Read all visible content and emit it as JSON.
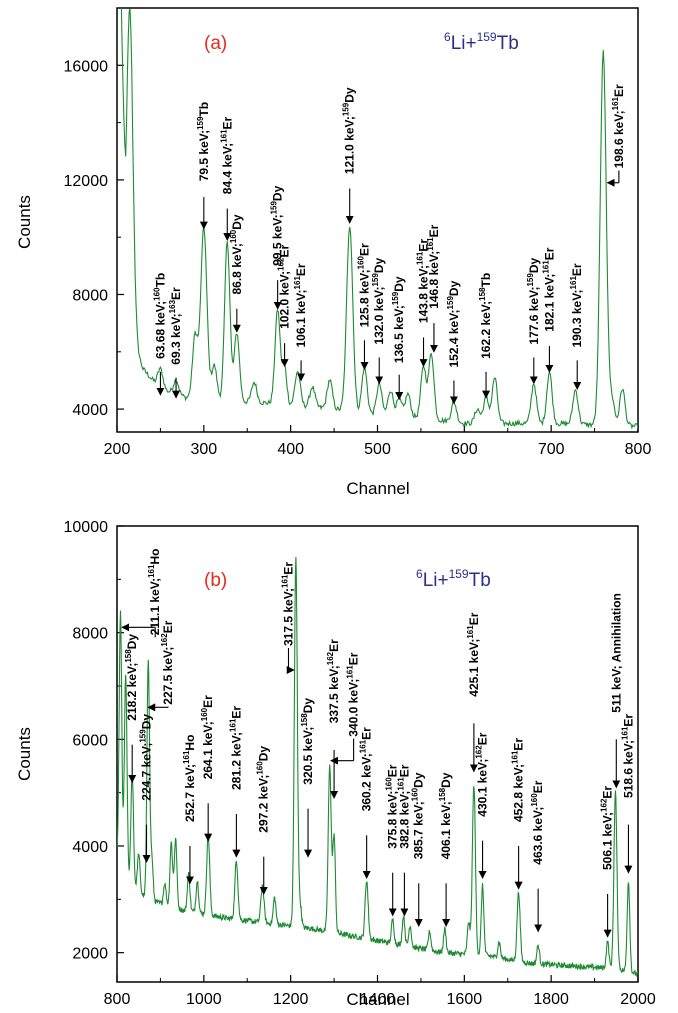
{
  "chart_data": [
    {
      "type": "line",
      "panel_label": "(a)",
      "reaction": {
        "a_mass": "6",
        "a_el": "Li+",
        "b_mass": "159",
        "b_el": "Tb"
      },
      "xlabel": "Channel",
      "ylabel": "Counts",
      "xlim": [
        200,
        800
      ],
      "ylim": [
        3200,
        18000
      ],
      "xticks": [
        200,
        300,
        400,
        500,
        600,
        700,
        800
      ],
      "yticks": [
        4000,
        8000,
        12000,
        16000
      ],
      "grid": false,
      "colors": {
        "line": "#1f8a34",
        "panel_label": "#e8291c",
        "reaction": "#2c2f8a"
      },
      "baseline": [
        [
          205,
          18000
        ],
        [
          210,
          9000
        ],
        [
          218,
          6500
        ],
        [
          230,
          5400
        ],
        [
          250,
          4700
        ],
        [
          280,
          4400
        ],
        [
          320,
          4300
        ],
        [
          380,
          4200
        ],
        [
          450,
          4000
        ],
        [
          500,
          3800
        ],
        [
          550,
          3700
        ],
        [
          600,
          3500
        ],
        [
          650,
          3500
        ],
        [
          700,
          3500
        ],
        [
          750,
          3450
        ],
        [
          800,
          3400
        ]
      ],
      "peaks": [
        {
          "ch": 215,
          "h": 10500,
          "w": 3.5
        },
        {
          "ch": 250,
          "h": 700,
          "w": 3
        },
        {
          "ch": 268,
          "h": 500,
          "w": 3
        },
        {
          "ch": 290,
          "h": 2200,
          "w": 3
        },
        {
          "ch": 300,
          "h": 6000,
          "w": 3.5
        },
        {
          "ch": 312,
          "h": 1200,
          "w": 3
        },
        {
          "ch": 327,
          "h": 5600,
          "w": 3
        },
        {
          "ch": 338,
          "h": 2400,
          "w": 3
        },
        {
          "ch": 358,
          "h": 700,
          "w": 3
        },
        {
          "ch": 385,
          "h": 3300,
          "w": 3
        },
        {
          "ch": 393,
          "h": 1300,
          "w": 2.5
        },
        {
          "ch": 408,
          "h": 1200,
          "w": 3
        },
        {
          "ch": 425,
          "h": 700,
          "w": 3
        },
        {
          "ch": 445,
          "h": 1000,
          "w": 3
        },
        {
          "ch": 468,
          "h": 6500,
          "w": 3.5
        },
        {
          "ch": 485,
          "h": 1600,
          "w": 3
        },
        {
          "ch": 502,
          "h": 1100,
          "w": 3
        },
        {
          "ch": 515,
          "h": 900,
          "w": 3
        },
        {
          "ch": 525,
          "h": 600,
          "w": 3
        },
        {
          "ch": 535,
          "h": 800,
          "w": 3
        },
        {
          "ch": 553,
          "h": 1800,
          "w": 3
        },
        {
          "ch": 562,
          "h": 2300,
          "w": 3
        },
        {
          "ch": 588,
          "h": 700,
          "w": 3
        },
        {
          "ch": 615,
          "h": 500,
          "w": 3
        },
        {
          "ch": 625,
          "h": 900,
          "w": 3
        },
        {
          "ch": 635,
          "h": 1600,
          "w": 3
        },
        {
          "ch": 680,
          "h": 1400,
          "w": 3
        },
        {
          "ch": 698,
          "h": 1800,
          "w": 3
        },
        {
          "ch": 728,
          "h": 1200,
          "w": 3
        },
        {
          "ch": 760,
          "h": 13000,
          "w": 3.5
        },
        {
          "ch": 770,
          "h": 900,
          "w": 3
        },
        {
          "ch": 782,
          "h": 1300,
          "w": 3
        }
      ],
      "annotations": [
        {
          "energy": "63.68 keV;",
          "mass": "160",
          "el": "Tb",
          "ch": 250,
          "tip": 4500,
          "arrow_top": 5300,
          "text_bottom": 5750
        },
        {
          "energy": "69.3 keV;",
          "mass": "163",
          "el": "Er",
          "ch": 268,
          "tip": 4400,
          "arrow_top": 5100,
          "text_bottom": 5550
        },
        {
          "energy": "79.5 keV;",
          "mass": "159",
          "el": "Tb",
          "ch": 300,
          "tip": 10300,
          "arrow_top": 11400,
          "text_bottom": 11950
        },
        {
          "energy": "84.4 keV;",
          "mass": "161",
          "el": "Er",
          "ch": 327,
          "tip": 9900,
          "arrow_top": 11000,
          "text_bottom": 11500
        },
        {
          "energy": "86.8 keV;",
          "mass": "160",
          "el": "Dy",
          "ch": 338,
          "tip": 6700,
          "arrow_top": 7500,
          "text_bottom": 8000
        },
        {
          "energy": "99.5 keV;",
          "mass": "159",
          "el": "Dy",
          "ch": 385,
          "tip": 7500,
          "arrow_top": 8500,
          "text_bottom": 9000
        },
        {
          "energy": "102.0 keV;",
          "mass": "162",
          "el": "Er",
          "ch": 393,
          "tip": 5500,
          "arrow_top": 6300,
          "text_bottom": 6800
        },
        {
          "energy": "106.1 keV;",
          "mass": "161",
          "el": "Er",
          "ch": 412,
          "tip": 5000,
          "arrow_top": 5700,
          "text_bottom": 6150
        },
        {
          "energy": "121.0 keV;",
          "mass": "159",
          "el": "Dy",
          "ch": 468,
          "tip": 10500,
          "arrow_top": 11700,
          "text_bottom": 12200
        },
        {
          "energy": "125.8 keV;",
          "mass": "160",
          "el": "Er",
          "ch": 485,
          "tip": 5400,
          "arrow_top": 6400,
          "text_bottom": 6850
        },
        {
          "energy": "132.0 keV;",
          "mass": "159",
          "el": "Dy",
          "ch": 502,
          "tip": 4900,
          "arrow_top": 5800,
          "text_bottom": 6250
        },
        {
          "energy": "136.5 keV;",
          "mass": "159",
          "el": "Dy",
          "ch": 525,
          "tip": 4350,
          "arrow_top": 5200,
          "text_bottom": 5600
        },
        {
          "energy": "143.8 keV;",
          "mass": "161",
          "el": "Er",
          "ch": 553,
          "tip": 5500,
          "arrow_top": 6500,
          "text_bottom": 7000
        },
        {
          "energy": "146.8 keV;",
          "mass": "161",
          "el": "Er",
          "ch": 565,
          "tip": 6000,
          "arrow_top": 7000,
          "text_bottom": 7500
        },
        {
          "energy": "152.4 keV;",
          "mass": "159",
          "el": "Dy",
          "ch": 588,
          "tip": 4200,
          "arrow_top": 5000,
          "text_bottom": 5450
        },
        {
          "energy": "162.2 keV;",
          "mass": "158",
          "el": "Tb",
          "ch": 625,
          "tip": 4400,
          "arrow_top": 5300,
          "text_bottom": 5750
        },
        {
          "energy": "177.6 keV;",
          "mass": "159",
          "el": "Dy",
          "ch": 680,
          "tip": 4900,
          "arrow_top": 5800,
          "text_bottom": 6250
        },
        {
          "energy": "182.1 keV;",
          "mass": "161",
          "el": "Er",
          "ch": 698,
          "tip": 5300,
          "arrow_top": 6200,
          "text_bottom": 6700
        },
        {
          "energy": "190.3 keV;",
          "mass": "161",
          "el": "Er",
          "ch": 730,
          "tip": 4700,
          "arrow_top": 5700,
          "text_bottom": 6150
        },
        {
          "energy": "198.6 keV;",
          "mass": "161",
          "el": "Er",
          "ch": 778,
          "elbow": "left",
          "tip_ch": 765,
          "tip": 11900,
          "text_bottom": 12400
        }
      ]
    },
    {
      "type": "line",
      "panel_label": "(b)",
      "reaction": {
        "a_mass": "6",
        "a_el": "Li+",
        "b_mass": "159",
        "b_el": "Tb"
      },
      "xlabel": "Channel",
      "ylabel": "Counts",
      "xlim": [
        800,
        2000
      ],
      "ylim": [
        1450,
        10000
      ],
      "xticks": [
        800,
        1000,
        1200,
        1400,
        1600,
        1800,
        2000
      ],
      "yticks": [
        2000,
        4000,
        6000,
        8000,
        10000
      ],
      "grid": false,
      "colors": {
        "line": "#1f8a34",
        "panel_label": "#e8291c",
        "reaction": "#2c2f8a"
      },
      "baseline": [
        [
          800,
          3800
        ],
        [
          830,
          3300
        ],
        [
          870,
          3000
        ],
        [
          950,
          2800
        ],
        [
          1050,
          2650
        ],
        [
          1150,
          2550
        ],
        [
          1250,
          2450
        ],
        [
          1350,
          2300
        ],
        [
          1450,
          2150
        ],
        [
          1550,
          2000
        ],
        [
          1650,
          1950
        ],
        [
          1750,
          1800
        ],
        [
          1850,
          1750
        ],
        [
          1950,
          1700
        ],
        [
          2000,
          1600
        ]
      ],
      "peaks": [
        {
          "ch": 808,
          "h": 4700,
          "w": 3
        },
        {
          "ch": 820,
          "h": 3700,
          "w": 3
        },
        {
          "ch": 835,
          "h": 2100,
          "w": 3
        },
        {
          "ch": 850,
          "h": 700,
          "w": 3
        },
        {
          "ch": 872,
          "h": 4500,
          "w": 3
        },
        {
          "ch": 880,
          "h": 800,
          "w": 3
        },
        {
          "ch": 910,
          "h": 400,
          "w": 3
        },
        {
          "ch": 925,
          "h": 1200,
          "w": 3
        },
        {
          "ch": 935,
          "h": 1300,
          "w": 3
        },
        {
          "ch": 965,
          "h": 700,
          "w": 3
        },
        {
          "ch": 985,
          "h": 600,
          "w": 3
        },
        {
          "ch": 1010,
          "h": 1500,
          "w": 3.5
        },
        {
          "ch": 1075,
          "h": 1100,
          "w": 3.5
        },
        {
          "ch": 1135,
          "h": 700,
          "w": 3.5
        },
        {
          "ch": 1163,
          "h": 500,
          "w": 3
        },
        {
          "ch": 1212,
          "h": 6900,
          "w": 3.5
        },
        {
          "ch": 1222,
          "h": 400,
          "w": 3
        },
        {
          "ch": 1290,
          "h": 3100,
          "w": 3.5
        },
        {
          "ch": 1300,
          "h": 1800,
          "w": 3
        },
        {
          "ch": 1375,
          "h": 1100,
          "w": 3.5
        },
        {
          "ch": 1435,
          "h": 450,
          "w": 3
        },
        {
          "ch": 1460,
          "h": 550,
          "w": 3
        },
        {
          "ch": 1475,
          "h": 400,
          "w": 3
        },
        {
          "ch": 1520,
          "h": 350,
          "w": 3
        },
        {
          "ch": 1555,
          "h": 450,
          "w": 3
        },
        {
          "ch": 1610,
          "h": 600,
          "w": 3
        },
        {
          "ch": 1622,
          "h": 3200,
          "w": 3.5
        },
        {
          "ch": 1642,
          "h": 1300,
          "w": 3
        },
        {
          "ch": 1680,
          "h": 300,
          "w": 3
        },
        {
          "ch": 1725,
          "h": 1300,
          "w": 3.5
        },
        {
          "ch": 1770,
          "h": 350,
          "w": 3
        },
        {
          "ch": 1930,
          "h": 500,
          "w": 3
        },
        {
          "ch": 1948,
          "h": 3300,
          "w": 3.5
        },
        {
          "ch": 1978,
          "h": 1700,
          "w": 3
        }
      ],
      "annotations": [
        {
          "energy": "211.1 keV;",
          "mass": "161",
          "el": "Ho",
          "ch": 888,
          "elbow": "left",
          "tip_ch": 812,
          "tip": 8100,
          "text_bottom": 7950
        },
        {
          "energy": "218.2 keV;",
          "mass": "158",
          "el": "Dy",
          "ch": 835,
          "tip": 5200,
          "arrow_top": 5900,
          "text_bottom": 6350
        },
        {
          "energy": "227.5 keV;",
          "mass": "162",
          "el": "Er",
          "ch": 918,
          "elbow": "left",
          "tip_ch": 872,
          "tip": 6600,
          "text_bottom": 6650
        },
        {
          "energy": "224.7 keV;",
          "mass": "159",
          "el": "Dy",
          "ch": 868,
          "tip": 3700,
          "arrow_top": 4400,
          "text_bottom": 4850
        },
        {
          "energy": "252.7 keV;",
          "mass": "161",
          "el": "Ho",
          "ch": 968,
          "tip": 3300,
          "arrow_top": 4000,
          "text_bottom": 4450
        },
        {
          "energy": "264.1 keV;",
          "mass": "160",
          "el": "Er",
          "ch": 1010,
          "tip": 4100,
          "arrow_top": 4800,
          "text_bottom": 5250
        },
        {
          "energy": "281.2 keV;",
          "mass": "161",
          "el": "Er",
          "ch": 1075,
          "tip": 3800,
          "arrow_top": 4600,
          "text_bottom": 5050
        },
        {
          "energy": "297.2 keV;",
          "mass": "160",
          "el": "Dy",
          "ch": 1138,
          "tip": 3100,
          "arrow_top": 3800,
          "text_bottom": 4250
        },
        {
          "energy": "317.5 keV;",
          "mass": "161",
          "el": "Er",
          "ch": 1195,
          "elbow": "right",
          "tip_ch": 1207,
          "tip": 7300,
          "text_bottom": 7750
        },
        {
          "energy": "320.5 keV;",
          "mass": "158",
          "el": "Dy",
          "ch": 1240,
          "tip": 3800,
          "arrow_top": 4700,
          "text_bottom": 5150
        },
        {
          "energy": "337.5 keV;",
          "mass": "162",
          "el": "Er",
          "ch": 1300,
          "tip": 4900,
          "arrow_top": 5800,
          "text_bottom": 6300
        },
        {
          "energy": "340.0 keV;",
          "mass": "161",
          "el": "Er",
          "ch": 1345,
          "elbow": "left",
          "tip_ch": 1293,
          "tip": 5600,
          "text_bottom": 6050
        },
        {
          "energy": "360.2 keV;",
          "mass": "161",
          "el": "Er",
          "ch": 1375,
          "tip": 3400,
          "arrow_top": 4200,
          "text_bottom": 4650
        },
        {
          "energy": "375.8 keV;",
          "mass": "160",
          "el": "Er",
          "ch": 1435,
          "tip": 2700,
          "arrow_top": 3500,
          "text_bottom": 3950
        },
        {
          "energy": "382.8 keV;",
          "mass": "161",
          "el": "Er",
          "ch": 1462,
          "tip": 2700,
          "arrow_top": 3500,
          "text_bottom": 3950
        },
        {
          "energy": "385.7 keV;",
          "mass": "160",
          "el": "Dy",
          "ch": 1495,
          "tip": 2500,
          "arrow_top": 3300,
          "text_bottom": 3750
        },
        {
          "energy": "406.1 keV;",
          "mass": "158",
          "el": "Dy",
          "ch": 1558,
          "tip": 2500,
          "arrow_top": 3300,
          "text_bottom": 3750
        },
        {
          "energy": "425.1 keV;",
          "mass": "161",
          "el": "Er",
          "ch": 1622,
          "tip": 5400,
          "arrow_top": 6300,
          "text_bottom": 6800
        },
        {
          "energy": "430.1 keV;",
          "mass": "162",
          "el": "Er",
          "ch": 1642,
          "tip": 3400,
          "arrow_top": 4100,
          "text_bottom": 4550
        },
        {
          "energy": "452.8 keV;",
          "mass": "161",
          "el": "Er",
          "ch": 1725,
          "tip": 3200,
          "arrow_top": 4000,
          "text_bottom": 4450
        },
        {
          "energy": "463.6 keV;",
          "mass": "160",
          "el": "Er",
          "ch": 1770,
          "tip": 2400,
          "arrow_top": 3200,
          "text_bottom": 3650
        },
        {
          "energy": "506.1 keV;",
          "mass": "162",
          "el": "Er",
          "ch": 1930,
          "tip": 2300,
          "arrow_top": 3100,
          "text_bottom": 3550
        },
        {
          "energy": "511 keV; Annihilation",
          "ch": 1950,
          "tip": 5100,
          "arrow_top": 6000,
          "text_bottom": 6500
        },
        {
          "energy": "518.6 keV;",
          "mass": "161",
          "el": "Er",
          "ch": 1978,
          "tip": 3500,
          "arrow_top": 4400,
          "text_bottom": 4900
        }
      ]
    }
  ]
}
